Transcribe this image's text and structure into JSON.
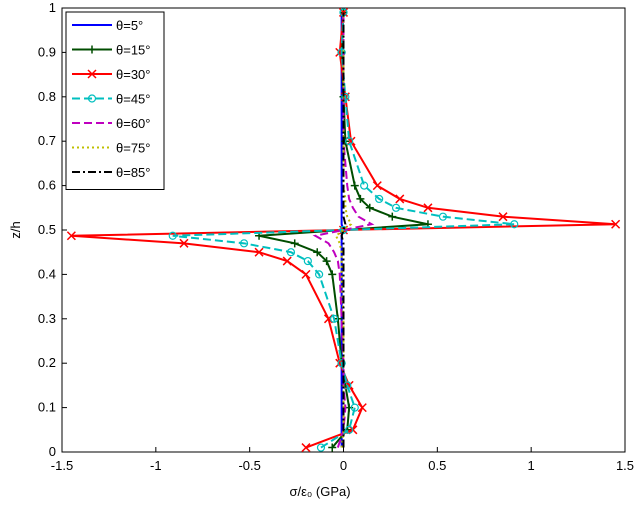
{
  "chart_data": {
    "type": "line",
    "xlabel": "σ/ε₀ (GPa)",
    "ylabel": "z/h",
    "xlim": [
      -1.5,
      1.5
    ],
    "xticks": [
      -1.5,
      -1,
      -0.5,
      0,
      0.5,
      1,
      1.5
    ],
    "ylim": [
      0,
      1
    ],
    "yticks": [
      0,
      0.1,
      0.2,
      0.3,
      0.4,
      0.5,
      0.6,
      0.7,
      0.8,
      0.9,
      1
    ],
    "legend": "upper left",
    "y": [
      0.01,
      0.05,
      0.1,
      0.15,
      0.2,
      0.3,
      0.4,
      0.43,
      0.45,
      0.47,
      0.487,
      0.5,
      0.513,
      0.53,
      0.55,
      0.57,
      0.6,
      0.7,
      0.8,
      0.9,
      0.99
    ],
    "series": [
      {
        "name": "θ=5°",
        "color": "#0000ff",
        "dash": "solid",
        "marker": "none",
        "x": [
          -0.01,
          -0.01,
          -0.01,
          -0.01,
          -0.01,
          -0.01,
          -0.01,
          -0.01,
          -0.01,
          -0.01,
          -0.01,
          0,
          -0.01,
          -0.01,
          -0.01,
          -0.01,
          -0.01,
          -0.01,
          -0.01,
          -0.01,
          -0.01
        ]
      },
      {
        "name": "θ=15°",
        "color": "#004d00",
        "dash": "solid",
        "marker": "plus",
        "x": [
          -0.06,
          0.02,
          0.03,
          0.01,
          -0.01,
          -0.03,
          -0.06,
          -0.09,
          -0.14,
          -0.26,
          -0.45,
          0,
          0.45,
          0.26,
          0.14,
          0.09,
          0.06,
          0.01,
          0,
          -0.01,
          0
        ]
      },
      {
        "name": "θ=30°",
        "color": "#ff0000",
        "dash": "solid",
        "marker": "cross",
        "x": [
          -0.2,
          0.05,
          0.1,
          0.03,
          -0.02,
          -0.08,
          -0.2,
          -0.3,
          -0.45,
          -0.85,
          -1.45,
          0,
          1.45,
          0.85,
          0.45,
          0.3,
          0.18,
          0.04,
          0.01,
          -0.02,
          0
        ]
      },
      {
        "name": "θ=45°",
        "color": "#00bfbf",
        "dash": "dashed",
        "marker": "circle",
        "x": [
          -0.12,
          0.03,
          0.06,
          0.02,
          -0.01,
          -0.05,
          -0.13,
          -0.19,
          -0.28,
          -0.53,
          -0.91,
          0,
          0.91,
          0.53,
          0.28,
          0.19,
          0.11,
          0.03,
          0.01,
          -0.01,
          0
        ]
      },
      {
        "name": "θ=60°",
        "color": "#bf00bf",
        "dash": "dashed",
        "marker": "none",
        "x": [
          -0.03,
          0,
          0.01,
          0,
          0,
          -0.01,
          -0.02,
          -0.03,
          -0.05,
          -0.08,
          -0.15,
          0,
          0.15,
          0.08,
          0.05,
          0.03,
          0.02,
          0,
          0,
          0,
          0
        ]
      },
      {
        "name": "θ=75°",
        "color": "#bfbf00",
        "dash": "dotted",
        "marker": "none",
        "x": [
          -0.01,
          0,
          0,
          0,
          0,
          0,
          -0.01,
          -0.01,
          -0.01,
          -0.02,
          -0.04,
          0,
          0.04,
          0.02,
          0.01,
          0.01,
          0,
          0,
          0,
          0,
          0
        ]
      },
      {
        "name": "θ=85°",
        "color": "#000000",
        "dash": "dashdot",
        "marker": "none",
        "x": [
          0,
          0,
          0,
          0,
          0,
          0,
          0,
          0,
          0,
          0,
          -0.01,
          0,
          0.01,
          0,
          0,
          0,
          0,
          0,
          0,
          0,
          0
        ]
      }
    ]
  }
}
